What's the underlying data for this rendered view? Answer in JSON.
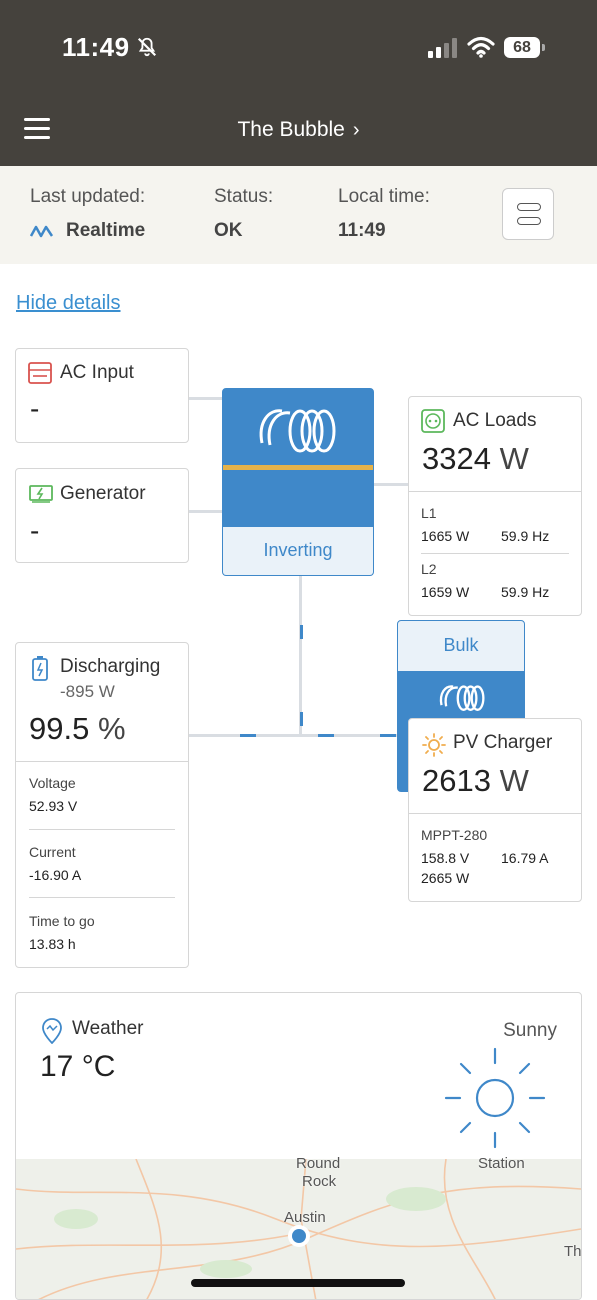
{
  "status_bar": {
    "time": "11:49",
    "battery": "68"
  },
  "header": {
    "title": "The Bubble",
    "chevron": "›"
  },
  "info": {
    "last_updated_label": "Last updated:",
    "last_updated_value": "Realtime",
    "status_label": "Status:",
    "status_value": "OK",
    "local_time_label": "Local time:",
    "local_time_value": "11:49"
  },
  "hide_details": "Hide details",
  "ac_input": {
    "title": "AC Input",
    "value": "-"
  },
  "generator": {
    "title": "Generator",
    "value": "-"
  },
  "inverter": {
    "state": "Inverting"
  },
  "ac_loads": {
    "title": "AC Loads",
    "value": "3324",
    "unit": "W",
    "phases": [
      {
        "label": "L1",
        "power": "1665 W",
        "freq": "59.9 Hz"
      },
      {
        "label": "L2",
        "power": "1659 W",
        "freq": "59.9 Hz"
      }
    ]
  },
  "battery": {
    "title": "Discharging",
    "power": "-895 W",
    "soc": "99.5",
    "soc_unit": "%",
    "voltage_label": "Voltage",
    "voltage": "52.93 V",
    "current_label": "Current",
    "current": "-16.90 A",
    "ttg_label": "Time to go",
    "ttg": "13.83 h"
  },
  "charger": {
    "state": "Bulk"
  },
  "pv_charger": {
    "title": "PV Charger",
    "value": "2613",
    "unit": "W",
    "model": "MPPT-280",
    "pv_voltage": "158.8 V",
    "pv_current": "16.79 A",
    "pv_power": "2665 W"
  },
  "weather": {
    "title": "Weather",
    "temp": "17 °C",
    "condition": "Sunny",
    "map_labels": [
      "Round",
      "Rock",
      "Austin",
      "Station",
      "Th"
    ]
  },
  "colors": {
    "header_bg": "#45423d",
    "accent_blue": "#3f88c9",
    "stripe": "#e5b24a",
    "ac_input_red": "#d9534f",
    "generator_green": "#5cb85c",
    "sun_orange": "#f0ad4e"
  }
}
